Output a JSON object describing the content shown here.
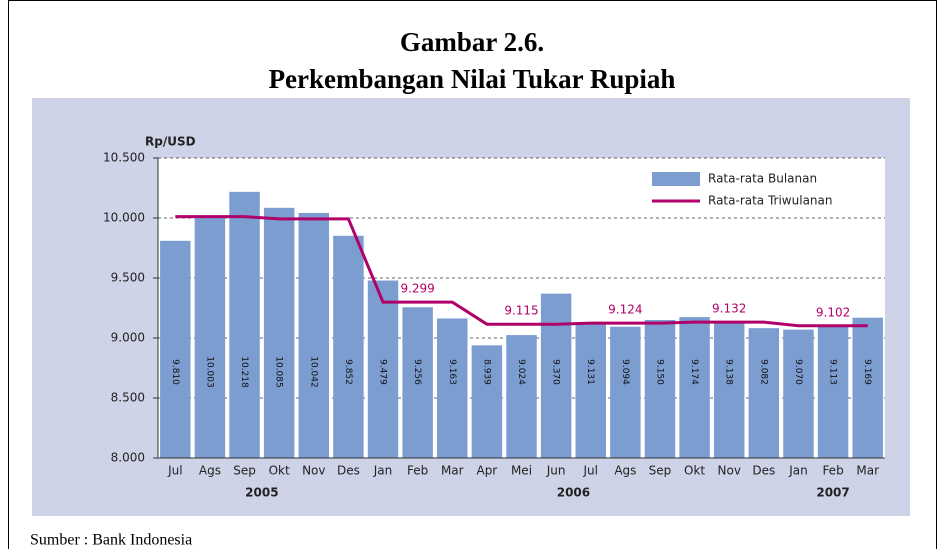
{
  "chart_data": {
    "type": "bar",
    "title": "Gambar 2.6.",
    "subtitle": "Perkembangan Nilai Tukar Rupiah",
    "y_label": "Rp/USD",
    "source": "Sumber : Bank Indonesia",
    "categories": [
      "Jul",
      "Ags",
      "Sep",
      "Okt",
      "Nov",
      "Des",
      "Jan",
      "Feb",
      "Mar",
      "Apr",
      "Mei",
      "Jun",
      "Jul",
      "Ags",
      "Sep",
      "Okt",
      "Nov",
      "Des",
      "Jan",
      "Feb",
      "Mar"
    ],
    "year_labels": [
      "2005",
      "2006",
      "2007"
    ],
    "ylim": [
      8000,
      10500
    ],
    "yticks": [
      {
        "value": 8000,
        "label": "8.000"
      },
      {
        "value": 8500,
        "label": "8.500"
      },
      {
        "value": 9000,
        "label": "9.000"
      },
      {
        "value": 9500,
        "label": "9.500"
      },
      {
        "value": 10000,
        "label": "10.000"
      },
      {
        "value": 10500,
        "label": "10.500"
      }
    ],
    "grid": true,
    "legend": "top-right",
    "series": [
      {
        "name": "Rata-rata Bulanan",
        "type": "bar",
        "color": "#7b9dd0",
        "values": [
          9810,
          10003,
          10218,
          10085,
          10042,
          9852,
          9479,
          9256,
          9163,
          8939,
          9024,
          9370,
          9131,
          9094,
          9150,
          9174,
          9138,
          9082,
          9070,
          9113,
          9169
        ],
        "value_labels": [
          "9.810",
          "10.003",
          "10.218",
          "10.085",
          "10.042",
          "9.852",
          "9.479",
          "9.256",
          "9.163",
          "8.939",
          "9.024",
          "9.370",
          "9.131",
          "9.094",
          "9.150",
          "9.174",
          "9.138",
          "9.082",
          "9.070",
          "9.113",
          "9.169"
        ]
      },
      {
        "name": "Rata-rata Triwulanan",
        "type": "line",
        "color": "#b0006a",
        "values": [
          10011,
          10011,
          10011,
          9993,
          9993,
          9993,
          9299,
          9299,
          9299,
          9115,
          9115,
          9115,
          9124,
          9124,
          9124,
          9132,
          9132,
          9132,
          9102,
          9102,
          9102
        ],
        "value_labels": [
          null,
          null,
          null,
          null,
          null,
          null,
          null,
          "9.299",
          null,
          null,
          "9.115",
          null,
          null,
          "9.124",
          null,
          null,
          "9.132",
          null,
          null,
          "9.102",
          null
        ]
      }
    ]
  }
}
